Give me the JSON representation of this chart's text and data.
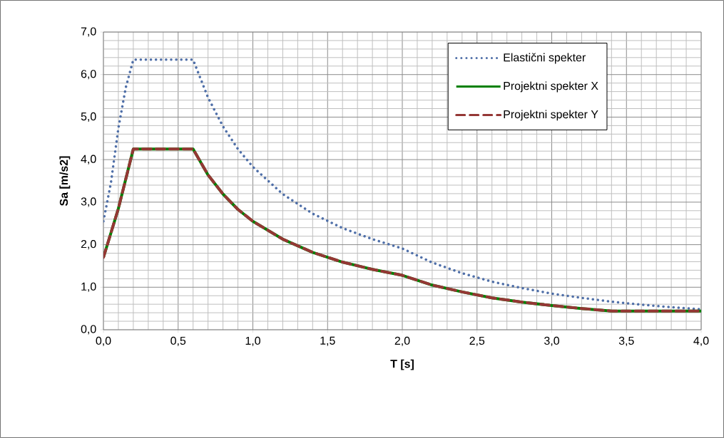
{
  "chart_data": {
    "type": "line",
    "xlabel": "T [s]",
    "ylabel": "Sa [m/s2]",
    "xlim": [
      0,
      4
    ],
    "ylim": [
      0,
      7
    ],
    "xticks": [
      {
        "value": 0,
        "label": "0,0"
      },
      {
        "value": 0.5,
        "label": "0,5"
      },
      {
        "value": 1,
        "label": "1,0"
      },
      {
        "value": 1.5,
        "label": "1,5"
      },
      {
        "value": 2,
        "label": "2,0"
      },
      {
        "value": 2.5,
        "label": "2,5"
      },
      {
        "value": 3,
        "label": "3,0"
      },
      {
        "value": 3.5,
        "label": "3,5"
      },
      {
        "value": 4,
        "label": "4,0"
      }
    ],
    "yticks": [
      {
        "value": 0,
        "label": "0,0"
      },
      {
        "value": 1,
        "label": "1,0"
      },
      {
        "value": 2,
        "label": "2,0"
      },
      {
        "value": 3,
        "label": "3,0"
      },
      {
        "value": 4,
        "label": "4,0"
      },
      {
        "value": 5,
        "label": "5,0"
      },
      {
        "value": 6,
        "label": "6,0"
      },
      {
        "value": 7,
        "label": "7,0"
      }
    ],
    "grid": true,
    "legend": "top right",
    "marker": "none",
    "series": [
      {
        "name": "Elastični spekter",
        "color": "#4f6fa8",
        "line_style": "dotted",
        "x": [
          0,
          0.05,
          0.1,
          0.15,
          0.2,
          0.4,
          0.6,
          0.7,
          0.8,
          0.9,
          1.0,
          1.2,
          1.4,
          1.6,
          1.8,
          2.0,
          2.2,
          2.4,
          2.6,
          2.8,
          3.0,
          3.2,
          3.4,
          3.6,
          3.8,
          4.0
        ],
        "values": [
          2.55,
          3.45,
          4.74,
          5.7,
          6.35,
          6.35,
          6.35,
          5.46,
          4.78,
          4.25,
          3.83,
          3.19,
          2.73,
          2.39,
          2.13,
          1.91,
          1.58,
          1.33,
          1.13,
          0.98,
          0.85,
          0.75,
          0.66,
          0.59,
          0.53,
          0.48
        ]
      },
      {
        "name": "Projektni spekter X",
        "color": "#008000",
        "line_style": "solid",
        "x": [
          0,
          0.1,
          0.2,
          0.4,
          0.6,
          0.7,
          0.8,
          0.9,
          1.0,
          1.2,
          1.4,
          1.6,
          1.8,
          2.0,
          2.2,
          2.4,
          2.6,
          2.8,
          3.0,
          3.2,
          3.4,
          3.6,
          3.8,
          4.0
        ],
        "values": [
          1.7,
          2.85,
          4.25,
          4.25,
          4.25,
          3.64,
          3.19,
          2.83,
          2.55,
          2.13,
          1.82,
          1.59,
          1.42,
          1.28,
          1.05,
          0.89,
          0.75,
          0.65,
          0.57,
          0.5,
          0.44,
          0.44,
          0.44,
          0.44
        ]
      },
      {
        "name": "Projektni spekter Y",
        "color": "#953735",
        "line_style": "dashed",
        "x": [
          0,
          0.1,
          0.2,
          0.4,
          0.6,
          0.7,
          0.8,
          0.9,
          1.0,
          1.2,
          1.4,
          1.6,
          1.8,
          2.0,
          2.2,
          2.4,
          2.6,
          2.8,
          3.0,
          3.2,
          3.4,
          3.6,
          3.8,
          4.0
        ],
        "values": [
          1.7,
          2.85,
          4.25,
          4.25,
          4.25,
          3.64,
          3.19,
          2.83,
          2.55,
          2.13,
          1.82,
          1.59,
          1.42,
          1.28,
          1.05,
          0.89,
          0.75,
          0.65,
          0.57,
          0.5,
          0.44,
          0.44,
          0.44,
          0.44
        ]
      }
    ]
  }
}
